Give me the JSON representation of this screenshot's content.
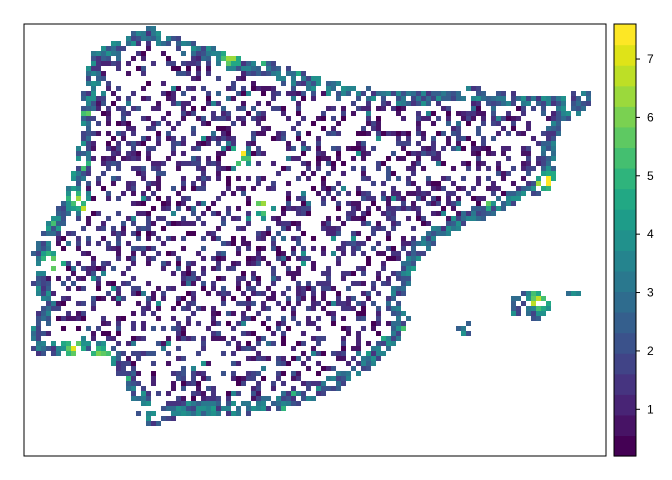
{
  "chart_data": {
    "type": "heatmap",
    "title": "",
    "xlabel": "",
    "ylabel": "",
    "value_range": [
      0.2,
      7.6
    ],
    "legend": {
      "placement": "right",
      "ticks": [
        "1",
        "2",
        "3",
        "4",
        "5",
        "6",
        "7"
      ],
      "tick_values": [
        1,
        2,
        3,
        4,
        5,
        6,
        7
      ],
      "colors": [
        "#440154",
        "#471365",
        "#482475",
        "#463480",
        "#414487",
        "#3b528b",
        "#355f8d",
        "#2f6c8e",
        "#2a788e",
        "#25848e",
        "#21918c",
        "#1e9c89",
        "#22a884",
        "#2fb47c",
        "#44bf70",
        "#5ec962",
        "#7ad151",
        "#9bd93c",
        "#bddf26",
        "#dfe318",
        "#fde725"
      ]
    },
    "frame": true,
    "grid": false
  }
}
